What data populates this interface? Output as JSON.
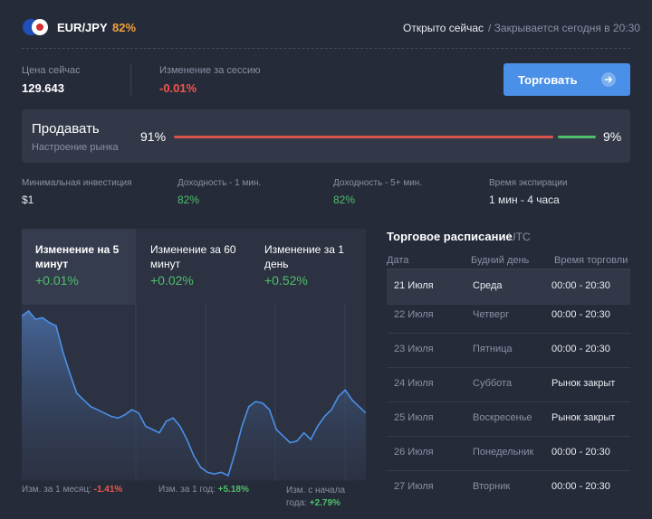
{
  "header": {
    "pair": "EUR/JPY",
    "payout": "82%",
    "open_now": "Открыто сейчас",
    "closes": "/ Закрывается сегодня в 20:30"
  },
  "price": {
    "price_label": "Цена сейчас",
    "price_value": "129.643",
    "session_label": "Изменение за сессию",
    "session_value": "-0.01%"
  },
  "trade_button": {
    "label": "Торговать"
  },
  "sentiment": {
    "title": "Продавать",
    "subtitle": "Настроение рынка",
    "sell_pct": "91%",
    "buy_pct": "9%",
    "sell_fraction": 0.91
  },
  "stats": [
    {
      "label": "Минимальная инвестиция",
      "value": "$1"
    },
    {
      "label": "Доходность - 1 мин.",
      "value": "82%"
    },
    {
      "label": "Доходность - 5+ мин.",
      "value": "82%"
    },
    {
      "label": "Время экспирации",
      "value": "1 мин - 4 часа"
    }
  ],
  "change_tabs": [
    {
      "label": "Изменение на 5 минут",
      "value": "+0.01%"
    },
    {
      "label": "Изменение за 60 минут",
      "value": "+0.02%"
    },
    {
      "label": "Изменение за 1 день",
      "value": "+0.52%"
    }
  ],
  "footer": {
    "month_label": "Изм. за 1 месяц:",
    "month_value": "-1.41%",
    "year_label": "Изм. за 1 год:",
    "year_value": "+5.18%",
    "ytd_label": "Изм. с начала года:",
    "ytd_value": "+2.79%"
  },
  "chart_data": {
    "type": "area",
    "series": [
      {
        "values": [
          97,
          100,
          95,
          96,
          93,
          91,
          75,
          62,
          50,
          46,
          42,
          40,
          38,
          36,
          35,
          37,
          40,
          38,
          30,
          28,
          26,
          33,
          35,
          30,
          22,
          12,
          5,
          2,
          1,
          2,
          0,
          14,
          30,
          42,
          45,
          44,
          40,
          28,
          24,
          20,
          21,
          26,
          22,
          30,
          36,
          40,
          48,
          52,
          46,
          42,
          38
        ]
      }
    ],
    "colors": {
      "line": "#4a90e8",
      "fill_top": "#4a6fa8",
      "fill_bottom": "#2c3242"
    }
  },
  "schedule": {
    "title": "Торговое расписание",
    "tz": "UTC",
    "headers": [
      "Дата",
      "Будний день",
      "Время торговли"
    ],
    "rows": [
      {
        "date": "21 Июля",
        "day": "Среда",
        "time": "00:00 - 20:30"
      },
      {
        "date": "22 Июля",
        "day": "Четверг",
        "time": "00:00 - 20:30"
      },
      {
        "date": "23 Июля",
        "day": "Пятница",
        "time": "00:00 - 20:30"
      },
      {
        "date": "24 Июля",
        "day": "Суббота",
        "time": "Рынок закрыт"
      },
      {
        "date": "25 Июля",
        "day": "Воскресенье",
        "time": "Рынок закрыт"
      },
      {
        "date": "26 Июля",
        "day": "Понедельник",
        "time": "00:00 - 20:30"
      },
      {
        "date": "27 Июля",
        "day": "Вторник",
        "time": "00:00 - 20:30"
      }
    ]
  },
  "icons": {
    "flag": "eu-jp-flag-icon",
    "arrow": "arrow-right-icon"
  }
}
